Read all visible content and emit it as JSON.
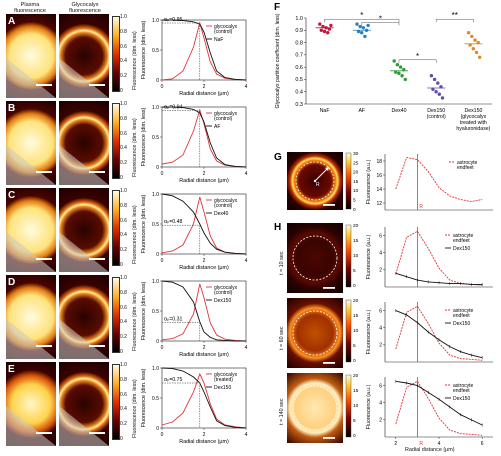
{
  "headers": {
    "plasma": [
      "Plasma",
      "fluorescence"
    ],
    "glycocalyx": [
      "Glycocalyx",
      "fluorescence"
    ]
  },
  "panel_letters": [
    "A",
    "B",
    "C",
    "D",
    "E",
    "F",
    "G",
    "H"
  ],
  "colorbar_ticks": [
    "1.0",
    "0.8",
    "0.6",
    "0.4",
    "0.2",
    "0"
  ],
  "colorbar_label": "Fluorescence (dim. less)",
  "profile_rows": [
    {
      "letter": "A",
      "alpha": "αₚ=0.95",
      "legend": [
        "glycocalyx",
        "(control)"
      ],
      "tracer": "NaF"
    },
    {
      "letter": "B",
      "alpha": "αₚ=0.94",
      "legend": [
        "glycocalyx",
        "(control)"
      ],
      "tracer": "AF"
    },
    {
      "letter": "C",
      "alpha": "αₚ=0.48",
      "legend": [
        "glycocalyx",
        "(control)"
      ],
      "tracer": "Dex40"
    },
    {
      "letter": "D",
      "alpha": "αₚ=0.31",
      "legend": [
        "glycocalyx",
        "(control)"
      ],
      "tracer": "Dex150"
    },
    {
      "letter": "E",
      "alpha": "αₚ=0.75",
      "legend": [
        "glycocalyx",
        "(treated)"
      ],
      "tracer": "Dex150"
    }
  ],
  "profile_axes": {
    "ylabel": "Fluorescence (dim. less)",
    "xlabel": "Radial distance (μm)",
    "yticks": [
      "1.0",
      "0.5",
      "0"
    ],
    "xticks": [
      "0",
      "2",
      "4"
    ]
  },
  "panel_F": {
    "ylabel": "Glycocalyx partition coefficient (dim. less)",
    "yticks": [
      "1.0",
      "0.9",
      "0.8",
      "0.7",
      "0.6",
      "0.5",
      "0.4",
      "0.3"
    ],
    "categories": [
      "NaF",
      "AF",
      "Dex40",
      "Dex150\n(control)",
      "Dex150\n(glycocalyx\ntreated with\nhyaluronidase)"
    ],
    "cat_labels": [
      [
        "NaF"
      ],
      [
        "AF"
      ],
      [
        "Dex40"
      ],
      [
        "Dex150",
        "(control)"
      ],
      [
        "Dex150",
        "(glycocalyx",
        "treated with",
        "hyaluronidase)"
      ]
    ],
    "significance": [
      "*",
      "*",
      "*",
      "**"
    ],
    "colors": [
      "#c0183a",
      "#2a7fc0",
      "#2e9a3a",
      "#5d4fa8",
      "#d98a2a"
    ]
  },
  "panel_G": {
    "ylabel": "Fluorescence (a.u.)",
    "yticks": [
      "18",
      "16",
      "14",
      "12"
    ],
    "colorbar_ticks": [
      "30",
      "25",
      "20",
      "15",
      "10",
      "5",
      "0"
    ],
    "legend": [
      "astrocyte",
      "endfeet"
    ],
    "R_label": "R"
  },
  "panel_H": {
    "times": [
      "t = 10 sec",
      "t = 60 sec",
      "t = 140 sec"
    ],
    "ylabel": "Fluorescence (a.u.)",
    "yticks": [
      "6",
      "4",
      "2"
    ],
    "colorbar_ticks": [
      "20",
      "15",
      "10",
      "5",
      "0"
    ],
    "legend": [
      "astrocyte",
      "endfeet",
      "Dex150"
    ],
    "xlabel": "Radial distance (μm)",
    "xticks": [
      "2",
      "4",
      "6"
    ],
    "R_label": "R"
  },
  "colors": {
    "red": "#e0343a",
    "black": "#111111",
    "heat_dark": "#1a0000",
    "heat_bright": "#fff4c0"
  },
  "chart_data": [
    {
      "type": "line",
      "panel": "A",
      "x": [
        0,
        0.5,
        1,
        1.5,
        1.8,
        2,
        2.3,
        2.6,
        3,
        3.5,
        4
      ],
      "series": [
        {
          "name": "glycocalyx (control)",
          "values": [
            0,
            0.02,
            0.15,
            0.55,
            0.95,
            0.7,
            0.3,
            0.1,
            0.03,
            0.01,
            0
          ]
        },
        {
          "name": "NaF",
          "values": [
            1.0,
            1.0,
            0.99,
            0.97,
            0.93,
            0.8,
            0.45,
            0.15,
            0.04,
            0.01,
            0
          ]
        }
      ]
    },
    {
      "type": "line",
      "panel": "B",
      "x": [
        0,
        0.5,
        1,
        1.5,
        1.8,
        2,
        2.3,
        2.6,
        3,
        3.5,
        4
      ],
      "series": [
        {
          "name": "glycocalyx (control)",
          "values": [
            0.05,
            0.08,
            0.2,
            0.6,
            0.95,
            0.72,
            0.3,
            0.1,
            0.03,
            0.01,
            0
          ]
        },
        {
          "name": "AF",
          "values": [
            1.0,
            1.0,
            0.99,
            0.96,
            0.9,
            0.75,
            0.4,
            0.15,
            0.04,
            0.01,
            0
          ]
        }
      ]
    },
    {
      "type": "line",
      "panel": "C",
      "x": [
        0,
        0.5,
        1,
        1.5,
        1.8,
        2,
        2.3,
        2.6,
        3,
        3.5,
        4
      ],
      "series": [
        {
          "name": "glycocalyx (control)",
          "values": [
            0.02,
            0.05,
            0.15,
            0.5,
            0.95,
            0.7,
            0.3,
            0.1,
            0.03,
            0.01,
            0
          ]
        },
        {
          "name": "Dex40",
          "values": [
            1.0,
            0.97,
            0.88,
            0.7,
            0.5,
            0.35,
            0.18,
            0.08,
            0.03,
            0.01,
            0
          ]
        }
      ]
    },
    {
      "type": "line",
      "panel": "D",
      "x": [
        0,
        0.5,
        1,
        1.5,
        1.8,
        2,
        2.3,
        2.6,
        3,
        3.5,
        4
      ],
      "series": [
        {
          "name": "glycocalyx (control)",
          "values": [
            0.02,
            0.04,
            0.12,
            0.45,
            0.95,
            0.72,
            0.3,
            0.1,
            0.03,
            0.01,
            0
          ]
        },
        {
          "name": "Dex150",
          "values": [
            1.0,
            0.98,
            0.9,
            0.65,
            0.32,
            0.15,
            0.06,
            0.02,
            0.01,
            0,
            0
          ]
        }
      ]
    },
    {
      "type": "line",
      "panel": "E",
      "x": [
        0,
        0.5,
        1,
        1.5,
        1.8,
        2,
        2.3,
        2.6,
        3,
        3.5,
        4
      ],
      "series": [
        {
          "name": "glycocalyx (treated)",
          "values": [
            0.05,
            0.1,
            0.25,
            0.6,
            0.9,
            0.75,
            0.4,
            0.15,
            0.05,
            0.02,
            0
          ]
        },
        {
          "name": "Dex150",
          "values": [
            1.0,
            0.99,
            0.95,
            0.85,
            0.75,
            0.6,
            0.35,
            0.12,
            0.04,
            0.01,
            0
          ]
        }
      ]
    },
    {
      "type": "scatter",
      "panel": "F",
      "categories": [
        "NaF",
        "AF",
        "Dex40",
        "Dex150 (control)",
        "Dex150 (glycocalyx treated with hyaluronidase)"
      ],
      "points": [
        [
          0.95,
          0.93,
          0.92,
          0.91,
          0.9,
          0.89,
          0.88,
          0.94
        ],
        [
          0.95,
          0.93,
          0.92,
          0.9,
          0.89,
          0.88,
          0.85,
          0.94
        ],
        [
          0.65,
          0.62,
          0.6,
          0.58,
          0.56,
          0.55,
          0.53,
          0.5
        ],
        [
          0.53,
          0.5,
          0.47,
          0.44,
          0.42,
          0.4,
          0.38,
          0.35
        ],
        [
          0.88,
          0.85,
          0.82,
          0.8,
          0.78,
          0.75,
          0.72,
          0.68
        ]
      ],
      "means": [
        0.92,
        0.9,
        0.57,
        0.43,
        0.79
      ],
      "ylim": [
        0.3,
        1.0
      ]
    },
    {
      "type": "line",
      "panel": "G",
      "x": [
        2,
        2.5,
        3,
        3.5,
        4,
        4.5,
        5,
        5.5,
        6
      ],
      "series": [
        {
          "name": "astrocyte endfeet",
          "values": [
            14,
            18.5,
            18.2,
            16.5,
            14.2,
            13,
            12.5,
            12.2,
            12.5
          ]
        }
      ],
      "ylim": [
        11,
        19
      ]
    },
    {
      "type": "line",
      "panel": "H1",
      "x": [
        2,
        2.5,
        3,
        3.5,
        4,
        4.5,
        5,
        5.5,
        6
      ],
      "series": [
        {
          "name": "astrocyte endfeet",
          "values": [
            1.5,
            5.8,
            6.5,
            4.5,
            2.2,
            0.8,
            0.4,
            0.3,
            0.2
          ]
        },
        {
          "name": "Dex150",
          "values": [
            1.6,
            1.2,
            0.8,
            0.6,
            0.5,
            0.4,
            0.4,
            0.3,
            0.3
          ]
        }
      ],
      "ylim": [
        0,
        7
      ]
    },
    {
      "type": "line",
      "panel": "H2",
      "x": [
        2,
        2.5,
        3,
        3.5,
        4,
        4.5,
        5,
        5.5,
        6
      ],
      "series": [
        {
          "name": "astrocyte endfeet",
          "values": [
            1.5,
            5.8,
            6.5,
            4.5,
            2.2,
            0.8,
            0.4,
            0.3,
            0.2
          ]
        },
        {
          "name": "Dex150",
          "values": [
            6.0,
            5.5,
            4.6,
            3.5,
            2.6,
            1.8,
            1.2,
            0.8,
            0.5
          ]
        }
      ],
      "ylim": [
        0,
        7
      ]
    },
    {
      "type": "line",
      "panel": "H3",
      "x": [
        2,
        2.5,
        3,
        3.5,
        4,
        4.5,
        5,
        5.5,
        6
      ],
      "series": [
        {
          "name": "astrocyte endfeet",
          "values": [
            1.5,
            5.8,
            6.5,
            4.5,
            2.2,
            0.8,
            0.4,
            0.3,
            0.2
          ]
        },
        {
          "name": "Dex150",
          "values": [
            6.5,
            6.3,
            6.0,
            5.2,
            4.4,
            3.5,
            2.6,
            2.0,
            1.4
          ]
        }
      ],
      "ylim": [
        0,
        7
      ]
    }
  ]
}
